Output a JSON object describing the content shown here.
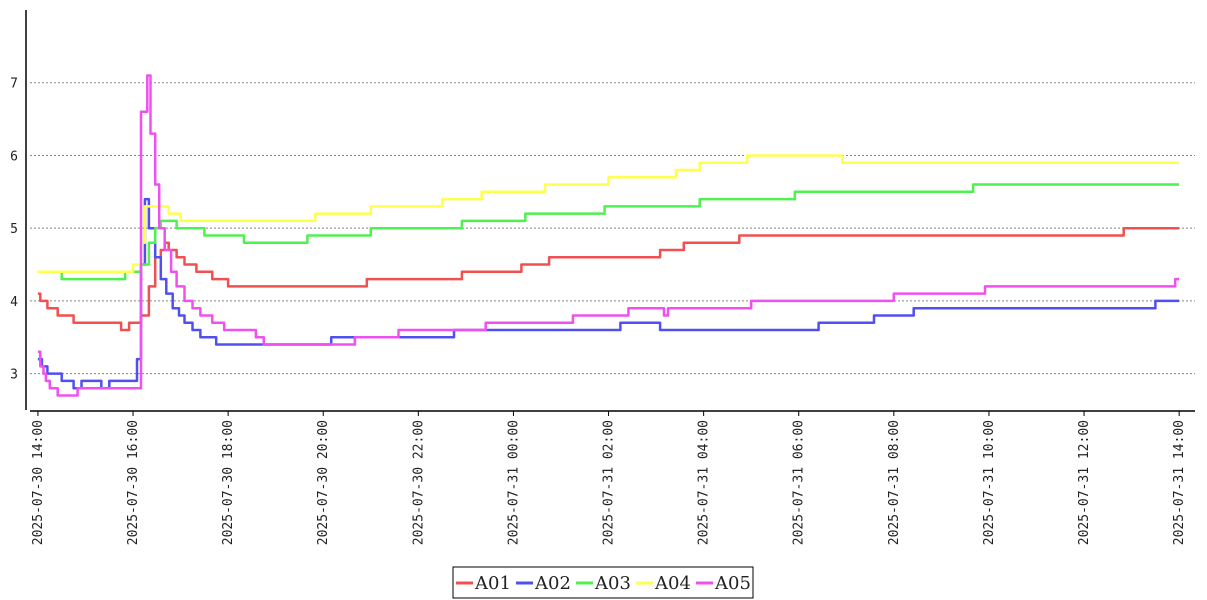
{
  "chart_data": {
    "type": "line",
    "title": "",
    "xlabel": "",
    "ylabel": "",
    "x_range": [
      "2025-07-30 13:50",
      "2025-07-31 14:20"
    ],
    "ylim": [
      2.5,
      8
    ],
    "y_ticks": [
      3,
      4,
      5,
      6,
      7
    ],
    "y_tick_labels": [
      "3",
      "4",
      "5",
      "6",
      "7"
    ],
    "x_ticks": [
      "2025-07-30 14:00",
      "2025-07-30 16:00",
      "2025-07-30 18:00",
      "2025-07-30 20:00",
      "2025-07-30 22:00",
      "2025-07-31 00:00",
      "2025-07-31 02:00",
      "2025-07-31 04:00",
      "2025-07-31 06:00",
      "2025-07-31 08:00",
      "2025-07-31 10:00",
      "2025-07-31 12:00",
      "2025-07-31 14:00"
    ],
    "x_tick_labels": [
      "2025-07-30 14:00",
      "2025-07-30 16:00",
      "2025-07-30 18:00",
      "2025-07-30 20:00",
      "2025-07-30 22:00",
      "2025-07-31 00:00",
      "2025-07-31 02:00",
      "2025-07-31 04:00",
      "2025-07-31 06:00",
      "2025-07-31 08:00",
      "2025-07-31 10:00",
      "2025-07-31 12:00",
      "2025-07-31 14:00"
    ],
    "grid": "horizontal dashed",
    "legend_position": "bottom-center",
    "series": [
      {
        "name": "A01",
        "color": "#f05050",
        "points": [
          [
            "2025-07-30 14:00",
            4.1
          ],
          [
            "2025-07-30 14:03",
            4.0
          ],
          [
            "2025-07-30 14:12",
            3.9
          ],
          [
            "2025-07-30 14:25",
            3.8
          ],
          [
            "2025-07-30 14:45",
            3.7
          ],
          [
            "2025-07-30 15:45",
            3.6
          ],
          [
            "2025-07-30 15:55",
            3.7
          ],
          [
            "2025-07-30 16:10",
            3.8
          ],
          [
            "2025-07-30 16:20",
            4.2
          ],
          [
            "2025-07-30 16:28",
            4.6
          ],
          [
            "2025-07-30 16:35",
            4.7
          ],
          [
            "2025-07-30 16:40",
            4.8
          ],
          [
            "2025-07-30 16:45",
            4.7
          ],
          [
            "2025-07-30 16:55",
            4.6
          ],
          [
            "2025-07-30 17:05",
            4.5
          ],
          [
            "2025-07-30 17:20",
            4.4
          ],
          [
            "2025-07-30 17:40",
            4.3
          ],
          [
            "2025-07-30 18:00",
            4.2
          ],
          [
            "2025-07-30 20:55",
            4.3
          ],
          [
            "2025-07-30 22:55",
            4.4
          ],
          [
            "2025-07-31 00:10",
            4.5
          ],
          [
            "2025-07-31 00:45",
            4.6
          ],
          [
            "2025-07-31 03:05",
            4.7
          ],
          [
            "2025-07-31 03:35",
            4.8
          ],
          [
            "2025-07-31 04:45",
            4.9
          ],
          [
            "2025-07-31 12:50",
            5.0
          ],
          [
            "2025-07-31 14:00",
            5.0
          ]
        ]
      },
      {
        "name": "A02",
        "color": "#5050f0",
        "points": [
          [
            "2025-07-30 14:00",
            3.2
          ],
          [
            "2025-07-30 14:05",
            3.1
          ],
          [
            "2025-07-30 14:12",
            3.0
          ],
          [
            "2025-07-30 14:30",
            2.9
          ],
          [
            "2025-07-30 14:45",
            2.8
          ],
          [
            "2025-07-30 14:55",
            2.9
          ],
          [
            "2025-07-30 15:20",
            2.8
          ],
          [
            "2025-07-30 15:30",
            2.9
          ],
          [
            "2025-07-30 16:05",
            3.2
          ],
          [
            "2025-07-30 16:10",
            4.5
          ],
          [
            "2025-07-30 16:15",
            5.4
          ],
          [
            "2025-07-30 16:20",
            5.0
          ],
          [
            "2025-07-30 16:28",
            4.6
          ],
          [
            "2025-07-30 16:35",
            4.3
          ],
          [
            "2025-07-30 16:42",
            4.1
          ],
          [
            "2025-07-30 16:50",
            3.9
          ],
          [
            "2025-07-30 16:58",
            3.8
          ],
          [
            "2025-07-30 17:05",
            3.7
          ],
          [
            "2025-07-30 17:15",
            3.6
          ],
          [
            "2025-07-30 17:25",
            3.5
          ],
          [
            "2025-07-30 17:45",
            3.4
          ],
          [
            "2025-07-30 20:10",
            3.5
          ],
          [
            "2025-07-30 22:45",
            3.6
          ],
          [
            "2025-07-31 02:15",
            3.7
          ],
          [
            "2025-07-31 03:05",
            3.6
          ],
          [
            "2025-07-31 06:25",
            3.7
          ],
          [
            "2025-07-31 07:35",
            3.8
          ],
          [
            "2025-07-31 08:25",
            3.9
          ],
          [
            "2025-07-31 13:30",
            4.0
          ],
          [
            "2025-07-31 14:00",
            4.0
          ]
        ]
      },
      {
        "name": "A03",
        "color": "#50f050",
        "points": [
          [
            "2025-07-30 14:00",
            4.4
          ],
          [
            "2025-07-30 14:30",
            4.3
          ],
          [
            "2025-07-30 15:50",
            4.4
          ],
          [
            "2025-07-30 16:10",
            4.5
          ],
          [
            "2025-07-30 16:20",
            4.8
          ],
          [
            "2025-07-30 16:28",
            5.0
          ],
          [
            "2025-07-30 16:35",
            5.1
          ],
          [
            "2025-07-30 16:55",
            5.0
          ],
          [
            "2025-07-30 17:30",
            4.9
          ],
          [
            "2025-07-30 18:20",
            4.8
          ],
          [
            "2025-07-30 19:40",
            4.9
          ],
          [
            "2025-07-30 21:00",
            5.0
          ],
          [
            "2025-07-30 22:55",
            5.1
          ],
          [
            "2025-07-31 00:15",
            5.2
          ],
          [
            "2025-07-31 01:55",
            5.3
          ],
          [
            "2025-07-31 03:55",
            5.4
          ],
          [
            "2025-07-31 05:55",
            5.5
          ],
          [
            "2025-07-31 09:40",
            5.6
          ],
          [
            "2025-07-31 14:00",
            5.6
          ]
        ]
      },
      {
        "name": "A04",
        "color": "#ffff50",
        "points": [
          [
            "2025-07-30 14:00",
            4.4
          ],
          [
            "2025-07-30 14:30",
            4.4
          ],
          [
            "2025-07-30 16:00",
            4.5
          ],
          [
            "2025-07-30 16:10",
            4.8
          ],
          [
            "2025-07-30 16:15",
            5.3
          ],
          [
            "2025-07-30 16:45",
            5.2
          ],
          [
            "2025-07-30 17:00",
            5.1
          ],
          [
            "2025-07-30 19:50",
            5.2
          ],
          [
            "2025-07-30 21:00",
            5.3
          ],
          [
            "2025-07-30 22:30",
            5.4
          ],
          [
            "2025-07-30 23:20",
            5.5
          ],
          [
            "2025-07-31 00:40",
            5.6
          ],
          [
            "2025-07-31 02:00",
            5.7
          ],
          [
            "2025-07-31 03:25",
            5.8
          ],
          [
            "2025-07-31 03:55",
            5.9
          ],
          [
            "2025-07-31 04:55",
            6.0
          ],
          [
            "2025-07-31 06:55",
            5.9
          ],
          [
            "2025-07-31 14:00",
            5.9
          ]
        ]
      },
      {
        "name": "A05",
        "color": "#f050f0",
        "points": [
          [
            "2025-07-30 14:00",
            3.3
          ],
          [
            "2025-07-30 14:03",
            3.1
          ],
          [
            "2025-07-30 14:07",
            3.0
          ],
          [
            "2025-07-30 14:10",
            2.9
          ],
          [
            "2025-07-30 14:15",
            2.8
          ],
          [
            "2025-07-30 14:25",
            2.7
          ],
          [
            "2025-07-30 14:50",
            2.8
          ],
          [
            "2025-07-30 16:05",
            2.8
          ],
          [
            "2025-07-30 16:10",
            6.6
          ],
          [
            "2025-07-30 16:18",
            7.1
          ],
          [
            "2025-07-30 16:22",
            6.3
          ],
          [
            "2025-07-30 16:28",
            5.6
          ],
          [
            "2025-07-30 16:33",
            5.0
          ],
          [
            "2025-07-30 16:40",
            4.7
          ],
          [
            "2025-07-30 16:48",
            4.4
          ],
          [
            "2025-07-30 16:55",
            4.2
          ],
          [
            "2025-07-30 17:05",
            4.0
          ],
          [
            "2025-07-30 17:15",
            3.9
          ],
          [
            "2025-07-30 17:25",
            3.8
          ],
          [
            "2025-07-30 17:40",
            3.7
          ],
          [
            "2025-07-30 17:55",
            3.6
          ],
          [
            "2025-07-30 18:35",
            3.5
          ],
          [
            "2025-07-30 18:45",
            3.4
          ],
          [
            "2025-07-30 20:40",
            3.5
          ],
          [
            "2025-07-30 21:35",
            3.6
          ],
          [
            "2025-07-30 23:25",
            3.7
          ],
          [
            "2025-07-31 01:15",
            3.8
          ],
          [
            "2025-07-31 02:25",
            3.9
          ],
          [
            "2025-07-31 03:10",
            3.8
          ],
          [
            "2025-07-31 03:15",
            3.9
          ],
          [
            "2025-07-31 05:00",
            4.0
          ],
          [
            "2025-07-31 08:00",
            4.1
          ],
          [
            "2025-07-31 09:55",
            4.2
          ],
          [
            "2025-07-31 13:55",
            4.3
          ],
          [
            "2025-07-31 14:00",
            4.3
          ]
        ]
      }
    ]
  }
}
